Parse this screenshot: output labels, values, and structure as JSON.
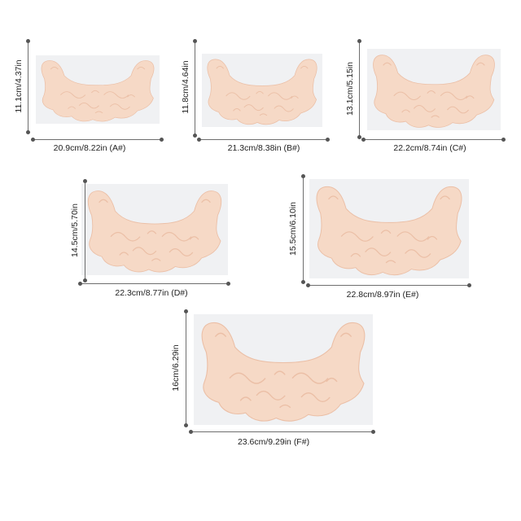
{
  "colors": {
    "background": "#ffffff",
    "photo_bg": "#f0f1f3",
    "pad_fill": "#f6d9c6",
    "pad_lace": "#ebbfa6",
    "rule": "#6e6e6e"
  },
  "sizes": [
    {
      "height_label": "11.1cm/4.37in",
      "width_label": "20.9cm/8.22in  (A#)"
    },
    {
      "height_label": "11.8cm/4.64in",
      "width_label": "21.3cm/8.38in  (B#)"
    },
    {
      "height_label": "13.1cm/5.15in",
      "width_label": "22.2cm/8.74in  (C#)"
    },
    {
      "height_label": "14.5cm/5.70in",
      "width_label": "22.3cm/8.77in  (D#)"
    },
    {
      "height_label": "15.5cm/6.10in",
      "width_label": "22.8cm/8.97in  (E#)"
    },
    {
      "height_label": "16cm/6.29in",
      "width_label": "23.6cm/9.29in  (F#)"
    }
  ]
}
